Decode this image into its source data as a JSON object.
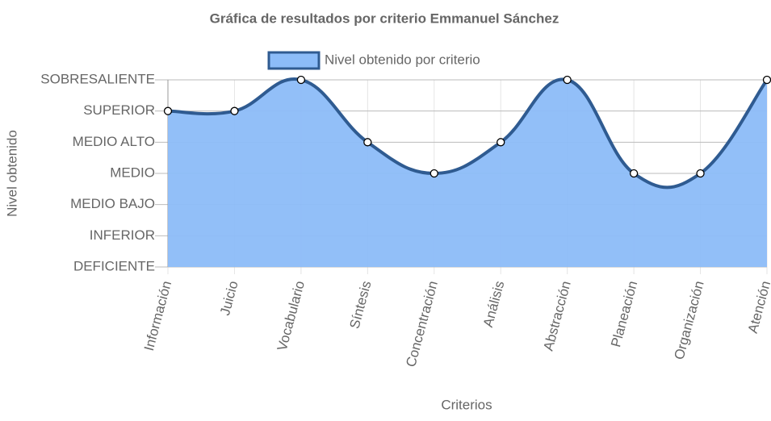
{
  "chart_data": {
    "type": "area",
    "title": "Gráfica de resultados por criterio Emmanuel Sánchez",
    "x_label": "Criterios",
    "y_label": "Nivel obtenido",
    "categories": [
      "Información",
      "Juicio",
      "Vocabulario",
      "Síntesis",
      "Concentración",
      "Análisis",
      "Abstracción",
      "Planeación",
      "Organización",
      "Atención"
    ],
    "series": [
      {
        "name": "Nivel obtenido por criterio",
        "color": "#2f5b91",
        "fill": "#8cbcf8",
        "values": [
          5,
          5,
          6,
          4,
          3,
          4,
          6,
          3,
          3,
          6
        ]
      }
    ],
    "ylim": [
      0,
      6
    ],
    "yticks": [
      {
        "value": 0,
        "label": "DEFICIENTE"
      },
      {
        "value": 1,
        "label": "INFERIOR"
      },
      {
        "value": 2,
        "label": "MEDIO BAJO"
      },
      {
        "value": 3,
        "label": "MEDIO"
      },
      {
        "value": 4,
        "label": "MEDIO ALTO"
      },
      {
        "value": 5,
        "label": "SUPERIOR"
      },
      {
        "value": 6,
        "label": "SOBRESALIENTE"
      }
    ],
    "grid": true,
    "legend": "top"
  }
}
